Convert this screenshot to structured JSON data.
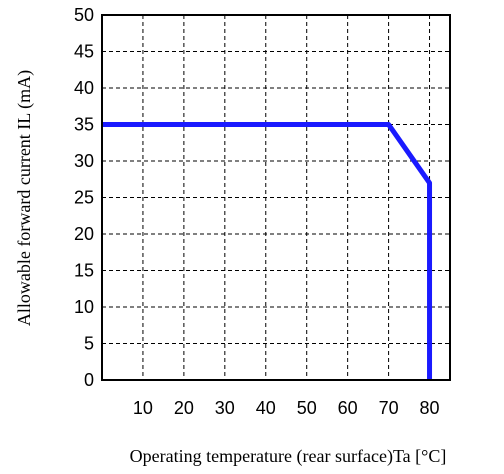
{
  "chart_data": {
    "type": "line",
    "title": "",
    "xlabel": "Operating temperature (rear surface)Ta [°C]",
    "ylabel": "Allowable forward current IL (mA)",
    "xlim": [
      0,
      85
    ],
    "ylim": [
      0,
      50
    ],
    "x_ticks": [
      10,
      20,
      30,
      40,
      50,
      60,
      70,
      80
    ],
    "y_ticks": [
      0,
      5,
      10,
      15,
      20,
      25,
      30,
      35,
      40,
      45,
      50
    ],
    "grid": true,
    "grid_style": "dashed",
    "series": [
      {
        "color": "#1a1aff",
        "x": [
          0,
          70,
          80,
          80
        ],
        "y": [
          35,
          35,
          27,
          0
        ]
      }
    ]
  }
}
